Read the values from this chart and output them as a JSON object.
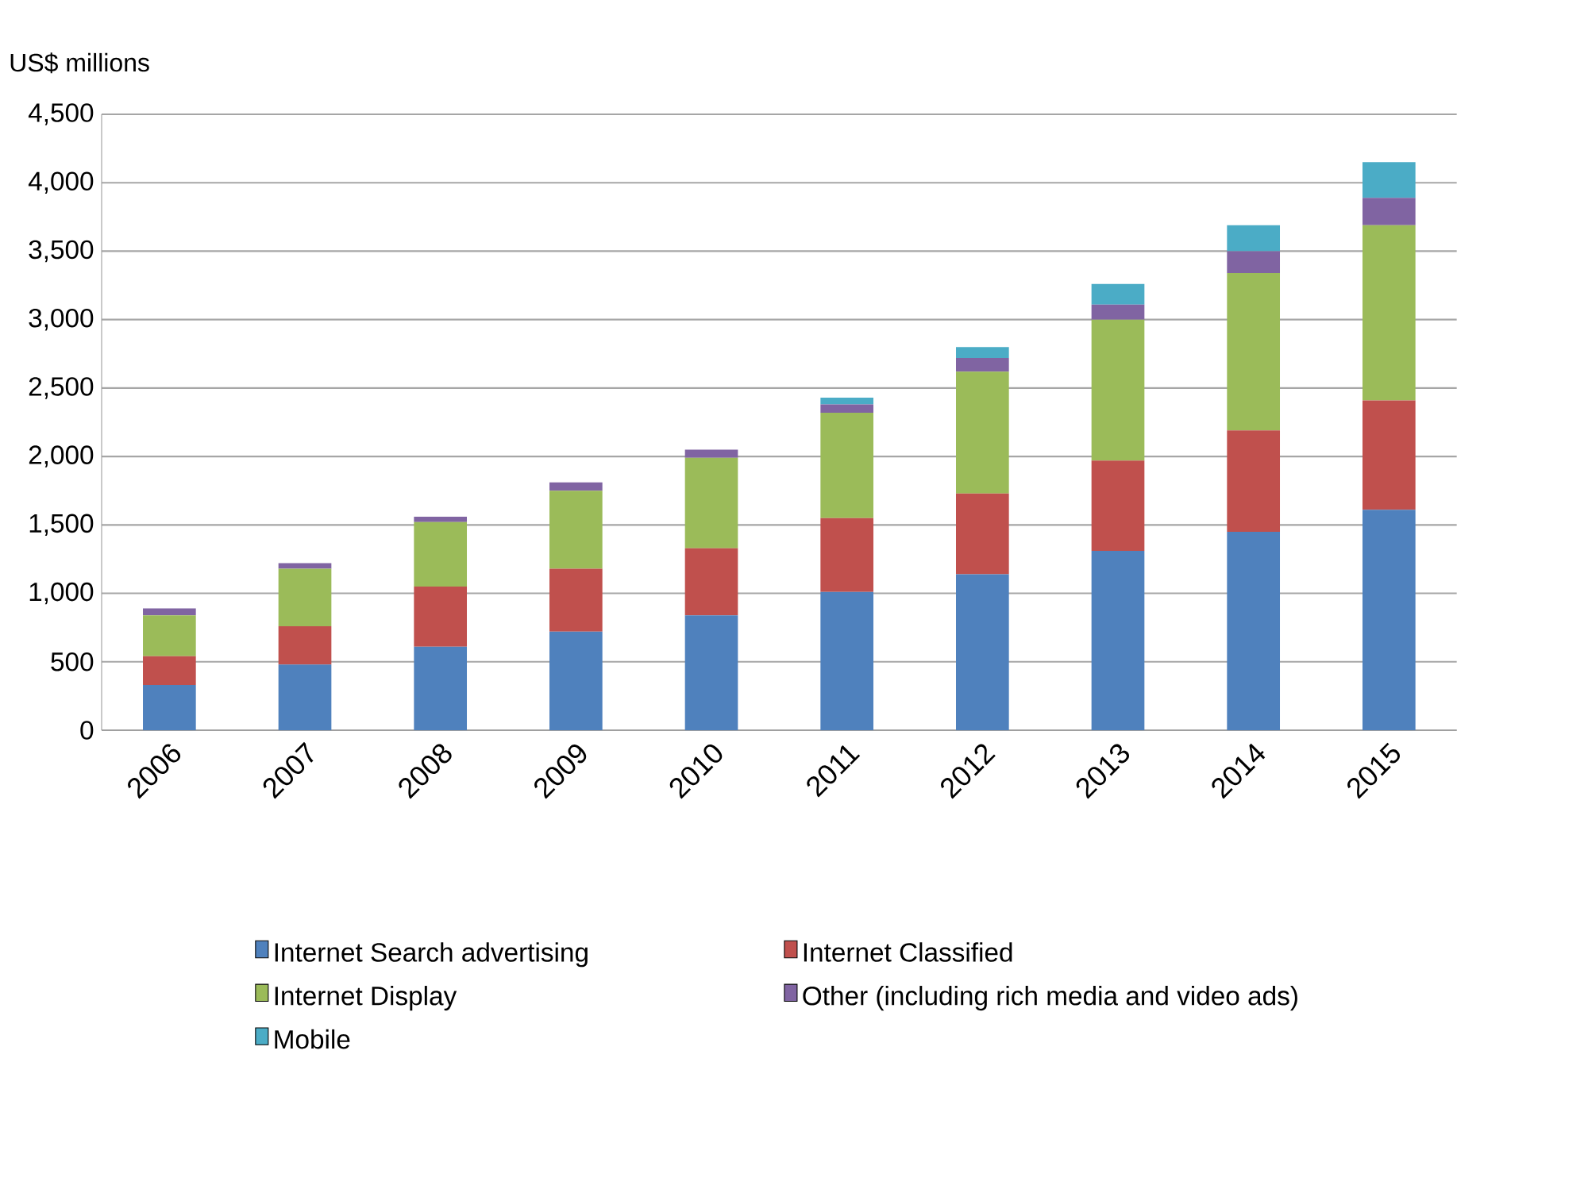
{
  "chart_data": {
    "type": "bar",
    "stacked": true,
    "ylabel": "US$ millions",
    "categories": [
      "2006",
      "2007",
      "2008",
      "2009",
      "2010",
      "2011",
      "2012",
      "2013",
      "2014",
      "2015"
    ],
    "series": [
      {
        "name": "Internet Search advertising",
        "color": "#4f81bd",
        "values": [
          330,
          480,
          610,
          720,
          840,
          1010,
          1140,
          1310,
          1450,
          1610
        ]
      },
      {
        "name": "Internet Classified",
        "color": "#c0504d",
        "values": [
          210,
          280,
          440,
          460,
          490,
          540,
          590,
          660,
          740,
          800
        ]
      },
      {
        "name": "Internet Display",
        "color": "#9bbb59",
        "values": [
          300,
          420,
          470,
          570,
          660,
          770,
          890,
          1030,
          1150,
          1280
        ]
      },
      {
        "name": "Other (including rich media and video ads)",
        "color": "#8064a2",
        "values": [
          50,
          40,
          40,
          60,
          60,
          60,
          100,
          110,
          160,
          200
        ]
      },
      {
        "name": "Mobile",
        "color": "#4bacc6",
        "values": [
          0,
          0,
          0,
          0,
          0,
          50,
          80,
          150,
          190,
          260
        ]
      }
    ],
    "ylim": [
      0,
      4500
    ],
    "yticks": [
      0,
      {
        "value": 500,
        "label": "500"
      },
      {
        "value": 1000,
        "label": "1,000"
      },
      {
        "value": 1500,
        "label": "1,500"
      },
      {
        "value": 2000,
        "label": "2,000"
      },
      {
        "value": 2500,
        "label": "2,500"
      },
      {
        "value": 3000,
        "label": "3,000"
      },
      {
        "value": 3500,
        "label": "3,500"
      },
      {
        "value": 4000,
        "label": "4,000"
      },
      {
        "value": 4500,
        "label": "4,500"
      }
    ],
    "grid": "y",
    "legend": "bottom"
  }
}
